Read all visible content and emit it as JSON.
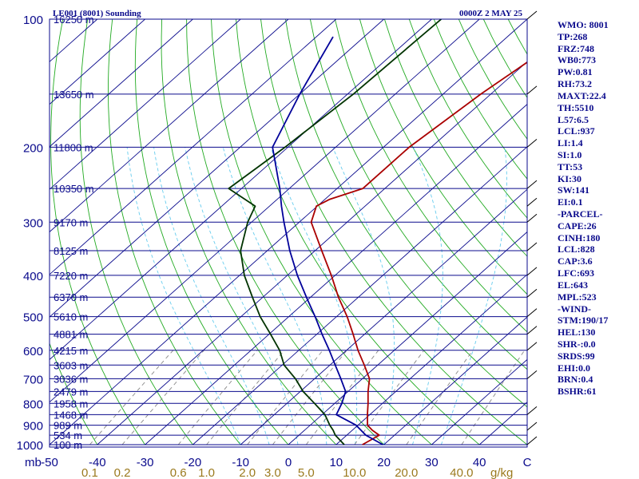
{
  "chart_data": {
    "type": "line",
    "title": "LE001 (8001) Sounding",
    "valid_time": "0000Z  2 MAY 25",
    "pressure_unit_label": "mb",
    "mixing_ratio_unit_label": "g/kg",
    "pressure_ticks": [
      100,
      200,
      300,
      400,
      500,
      600,
      700,
      800,
      900,
      1000
    ],
    "temperature_ticks": [
      -50,
      -40,
      -30,
      -20,
      -10,
      0,
      10,
      20,
      30,
      40
    ],
    "temperature_tick_labels": [
      "-50",
      "-40",
      "-30",
      "-20",
      "-10",
      "0",
      "10",
      "20",
      "30",
      "40",
      "C"
    ],
    "mixing_ratio_ticks": [
      0.1,
      0.2,
      0.6,
      1.0,
      2.0,
      3.0,
      5.0,
      10.0,
      20.0,
      40.0
    ],
    "mixing_ratio_tick_labels": [
      "0.1",
      "0.2",
      "0.6",
      "1.0",
      "2.0",
      "3.0",
      "5.0",
      "10.0",
      "20.0",
      "40.0"
    ],
    "height_labels": [
      {
        "p": 100,
        "label": "16250 m"
      },
      {
        "p": 150,
        "label": "13650 m"
      },
      {
        "p": 200,
        "label": "11800 m"
      },
      {
        "p": 250,
        "label": "10350 m"
      },
      {
        "p": 300,
        "label": "9170 m"
      },
      {
        "p": 350,
        "label": "8125 m"
      },
      {
        "p": 400,
        "label": "7220 m"
      },
      {
        "p": 450,
        "label": "6370 m"
      },
      {
        "p": 500,
        "label": "5610 m"
      },
      {
        "p": 550,
        "label": "4881 m"
      },
      {
        "p": 600,
        "label": "4215 m"
      },
      {
        "p": 650,
        "label": "3603 m"
      },
      {
        "p": 700,
        "label": "3036 m"
      },
      {
        "p": 750,
        "label": "2479 m"
      },
      {
        "p": 800,
        "label": "1958 m"
      },
      {
        "p": 850,
        "label": "1468 m"
      },
      {
        "p": 900,
        "label": "989 m"
      },
      {
        "p": 950,
        "label": "534 m"
      },
      {
        "p": 1000,
        "label": "100 m"
      }
    ],
    "series": [
      {
        "name": "",
        "color": "#aa0000",
        "points": [
          [
            1000,
            15.5
          ],
          [
            950,
            16.8
          ],
          [
            925,
            14.2
          ],
          [
            900,
            12.0
          ],
          [
            850,
            9.5
          ],
          [
            800,
            7.0
          ],
          [
            750,
            4.2
          ],
          [
            700,
            1.5
          ],
          [
            650,
            -2.8
          ],
          [
            600,
            -7.6
          ],
          [
            550,
            -12.4
          ],
          [
            500,
            -17.8
          ],
          [
            450,
            -24.2
          ],
          [
            400,
            -30.8
          ],
          [
            350,
            -38.6
          ],
          [
            300,
            -47.5
          ],
          [
            275,
            -50.2
          ],
          [
            265,
            -49.0
          ],
          [
            250,
            -44.6
          ],
          [
            200,
            -44.6
          ],
          [
            150,
            -42.1
          ],
          [
            110,
            -38.1
          ],
          [
            100,
            -37.0
          ]
        ]
      },
      {
        "name": "",
        "color": "#003300",
        "points": [
          [
            1000,
            11.7
          ],
          [
            950,
            7.6
          ],
          [
            925,
            6.0
          ],
          [
            900,
            4.1
          ],
          [
            850,
            0.6
          ],
          [
            800,
            -4.2
          ],
          [
            750,
            -9.4
          ],
          [
            700,
            -14.0
          ],
          [
            650,
            -19.6
          ],
          [
            600,
            -24.0
          ],
          [
            550,
            -29.7
          ],
          [
            500,
            -36.0
          ],
          [
            450,
            -42.2
          ],
          [
            400,
            -49.0
          ],
          [
            350,
            -55.6
          ],
          [
            300,
            -60.8
          ],
          [
            275,
            -63.0
          ],
          [
            250,
            -72.7
          ],
          [
            200,
            -70.6
          ],
          [
            150,
            -68.8
          ],
          [
            100,
            -68.0
          ]
        ]
      },
      {
        "name": "",
        "color": "#00009a",
        "points": [
          [
            1000,
            19.8
          ],
          [
            950,
            14.0
          ],
          [
            900,
            9.6
          ],
          [
            850,
            3.0
          ],
          [
            800,
            1.5
          ],
          [
            750,
            -0.5
          ],
          [
            700,
            -4.5
          ],
          [
            650,
            -8.9
          ],
          [
            600,
            -13.6
          ],
          [
            550,
            -18.9
          ],
          [
            500,
            -24.5
          ],
          [
            450,
            -30.9
          ],
          [
            400,
            -37.9
          ],
          [
            350,
            -45.3
          ],
          [
            300,
            -53.2
          ],
          [
            275,
            -57.5
          ],
          [
            250,
            -62.0
          ],
          [
            200,
            -73.2
          ],
          [
            150,
            -80.0
          ],
          [
            110,
            -86.5
          ]
        ]
      }
    ],
    "wind_barbs_pressure": [
      100,
      150,
      200,
      250,
      275,
      300,
      350,
      400,
      450,
      500,
      550,
      600,
      700,
      850,
      925,
      1000
    ]
  },
  "indices": [
    "WMO: 8001",
    "TP:268",
    "FRZ:748",
    "WB0:773",
    "PW:0.81",
    "RH:73.2",
    "MAXT:22.4",
    "TH:5510",
    "L57:6.5",
    "LCL:937",
    "LI:1.4",
    "SI:1.0",
    "TT:53",
    "KI:30",
    "SW:141",
    "EI:0.1",
    "-PARCEL-",
    "CAPE:26",
    "CINH:180",
    "LCL:828",
    "CAP:3.6",
    "LFC:693",
    "EL:643",
    "MPL:523",
    "-WIND-",
    "STM:190/17",
    "HEL:130",
    "SHR-:0.0",
    "SRDS:99",
    "EHI:0.0",
    "BRN:0.4",
    "BSHR:61"
  ],
  "colors": {
    "frame": "#0a0a8c",
    "isobar": "#0a0a8c",
    "isotherm": "#0a0a8c",
    "dry_adiabat": "#22aa22",
    "moist_adiabat": "#66ccee",
    "mixing_ratio": "#888888",
    "mixing_ratio_label": "#9b7a1e",
    "temperature": "#aa0000",
    "dewpoint": "#003300",
    "parcel": "#00009a"
  }
}
